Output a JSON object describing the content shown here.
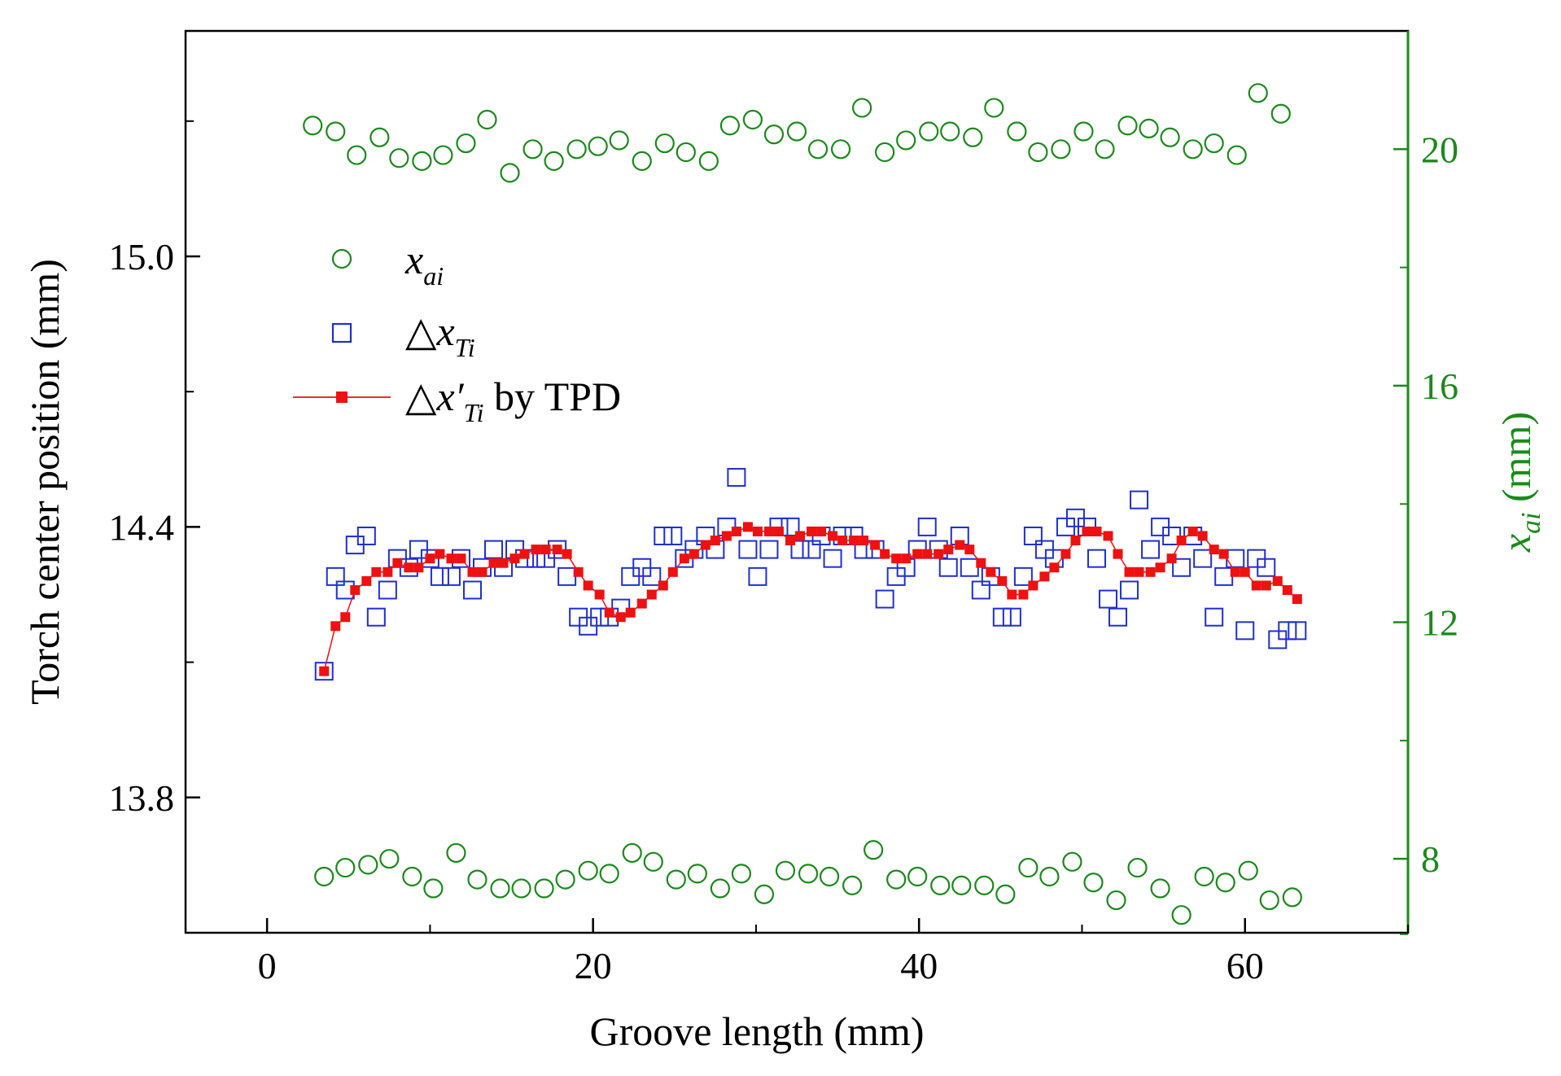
{
  "colors": {
    "xai": "#1a8a1a",
    "dxT": "#1f2fd0",
    "dxTp": "#ee1111",
    "axis": "#000000",
    "right_axis": "#1a8a1a"
  },
  "chart_data": {
    "type": "scatter",
    "xlabel": "Groove length (mm)",
    "ylabel": "Torch center position (mm)",
    "y2label_main": "x",
    "y2label_sub": "ai",
    "y2label_unit": " (mm)",
    "xlim": [
      -5,
      70
    ],
    "xticks": [
      0,
      20,
      40,
      60
    ],
    "ylim": [
      13.5,
      15.5
    ],
    "yticks": [
      13.8,
      14.4,
      15.0
    ],
    "yticks_labels": [
      "13.8",
      "14.4",
      "15.0"
    ],
    "y2lim": [
      6.75,
      22
    ],
    "y2ticks": [
      8,
      12,
      16,
      20
    ],
    "legend": {
      "placement": "top-left",
      "entries": [
        {
          "main": "x",
          "sub": "ai",
          "suffix": ""
        },
        {
          "main": "△x",
          "sub": "Ti",
          "suffix": ""
        },
        {
          "main": "△x′",
          "sub": "Ti",
          "suffix": "  by TPD"
        }
      ]
    },
    "series": [
      {
        "id": "xai_upper",
        "axis": "right",
        "marker": "open-circle",
        "x": [
          2.8,
          4.2,
          5.5,
          6.9,
          8.1,
          9.5,
          10.8,
          12.2,
          13.5,
          14.9,
          16.3,
          17.6,
          19.0,
          20.3,
          21.6,
          23.0,
          24.4,
          25.7,
          27.1,
          28.4,
          29.8,
          31.1,
          32.5,
          33.8,
          35.2,
          36.5,
          37.9,
          39.2,
          40.6,
          41.9,
          43.3,
          44.6,
          46.0,
          47.3,
          48.7,
          50.1,
          51.4,
          52.8,
          54.1,
          55.4,
          56.8,
          58.1,
          59.5,
          60.8,
          62.2
        ],
        "y": [
          20.4,
          20.3,
          19.9,
          20.2,
          19.85,
          19.8,
          19.9,
          20.1,
          20.5,
          19.6,
          20.0,
          19.8,
          20.0,
          20.05,
          20.15,
          19.8,
          20.1,
          19.95,
          19.8,
          20.4,
          20.5,
          20.25,
          20.3,
          20.0,
          20.0,
          20.7,
          19.95,
          20.15,
          20.3,
          20.3,
          20.2,
          20.7,
          20.3,
          19.95,
          20.0,
          20.3,
          20.0,
          20.4,
          20.35,
          20.2,
          20.0,
          20.1,
          19.9,
          20.95,
          20.6
        ]
      },
      {
        "id": "xai_lower",
        "axis": "right",
        "marker": "open-circle",
        "x": [
          3.5,
          4.8,
          6.2,
          7.5,
          8.9,
          10.2,
          11.6,
          12.9,
          14.3,
          15.6,
          17.0,
          18.3,
          19.7,
          21.0,
          22.4,
          23.7,
          25.1,
          26.4,
          27.8,
          29.1,
          30.5,
          31.8,
          33.2,
          34.5,
          35.9,
          37.2,
          38.6,
          39.9,
          41.3,
          42.6,
          44.0,
          45.3,
          46.7,
          48.0,
          49.4,
          50.7,
          52.1,
          53.4,
          54.8,
          56.1,
          57.5,
          58.8,
          60.2,
          61.5,
          62.9
        ],
        "y": [
          7.7,
          7.85,
          7.9,
          8.0,
          7.7,
          7.5,
          8.1,
          7.65,
          7.5,
          7.5,
          7.5,
          7.65,
          7.8,
          7.75,
          8.1,
          7.95,
          7.65,
          7.75,
          7.5,
          7.75,
          7.4,
          7.8,
          7.75,
          7.7,
          7.55,
          8.15,
          7.65,
          7.7,
          7.55,
          7.55,
          7.55,
          7.4,
          7.85,
          7.7,
          7.95,
          7.6,
          7.3,
          7.85,
          7.5,
          7.05,
          7.7,
          7.6,
          7.8,
          7.3,
          7.35
        ]
      },
      {
        "id": "dxT",
        "axis": "left",
        "marker": "open-square",
        "x": [
          3.5,
          4.2,
          4.8,
          5.4,
          6.1,
          6.7,
          7.4,
          8.0,
          8.7,
          9.3,
          10.0,
          10.6,
          11.3,
          11.9,
          12.6,
          13.2,
          13.9,
          14.5,
          15.2,
          15.8,
          16.5,
          17.1,
          17.8,
          18.4,
          19.1,
          19.7,
          20.4,
          21.0,
          21.7,
          22.3,
          23.0,
          23.6,
          24.3,
          24.9,
          25.6,
          26.2,
          26.9,
          27.5,
          28.2,
          28.8,
          29.5,
          30.1,
          30.8,
          31.4,
          32.1,
          32.7,
          33.4,
          34.0,
          34.7,
          35.3,
          36.0,
          36.6,
          37.3,
          37.9,
          38.6,
          39.2,
          39.9,
          40.5,
          41.2,
          41.8,
          42.5,
          43.1,
          43.8,
          44.4,
          45.1,
          45.7,
          46.4,
          47.0,
          47.7,
          48.3,
          49.0,
          49.6,
          50.3,
          50.9,
          51.6,
          52.2,
          52.9,
          53.5,
          54.2,
          54.8,
          55.5,
          56.1,
          56.8,
          57.4,
          58.1,
          58.7,
          59.4,
          60.0,
          60.7,
          61.3,
          62.0,
          62.6,
          63.2
        ],
        "y": [
          14.08,
          14.29,
          14.26,
          14.36,
          14.38,
          14.2,
          14.26,
          14.33,
          14.31,
          14.35,
          14.33,
          14.29,
          14.29,
          14.33,
          14.26,
          14.31,
          14.35,
          14.31,
          14.35,
          14.33,
          14.33,
          14.33,
          14.35,
          14.29,
          14.2,
          14.18,
          14.2,
          14.2,
          14.22,
          14.29,
          14.31,
          14.29,
          14.38,
          14.38,
          14.33,
          14.35,
          14.38,
          14.35,
          14.4,
          14.51,
          14.35,
          14.29,
          14.35,
          14.4,
          14.4,
          14.35,
          14.35,
          14.38,
          14.33,
          14.38,
          14.38,
          14.35,
          14.35,
          14.24,
          14.29,
          14.31,
          14.35,
          14.4,
          14.35,
          14.31,
          14.38,
          14.31,
          14.26,
          14.29,
          14.2,
          14.2,
          14.29,
          14.38,
          14.35,
          14.33,
          14.4,
          14.42,
          14.4,
          14.33,
          14.24,
          14.2,
          14.26,
          14.46,
          14.35,
          14.4,
          14.38,
          14.31,
          14.38,
          14.33,
          14.2,
          14.29,
          14.33,
          14.17,
          14.33,
          14.31,
          14.15,
          14.17,
          14.17
        ]
      },
      {
        "id": "dxTp",
        "axis": "left",
        "marker": "filled-square-line",
        "x": [
          3.5,
          4.2,
          4.8,
          5.4,
          6.1,
          6.7,
          7.4,
          8.0,
          8.7,
          9.3,
          10.0,
          10.6,
          11.3,
          11.9,
          12.6,
          13.2,
          13.9,
          14.5,
          15.2,
          15.8,
          16.5,
          17.1,
          17.8,
          18.4,
          19.1,
          19.7,
          20.4,
          21.0,
          21.7,
          22.3,
          23.0,
          23.6,
          24.3,
          24.9,
          25.6,
          26.2,
          26.9,
          27.5,
          28.2,
          28.8,
          29.5,
          30.1,
          30.8,
          31.4,
          32.1,
          32.7,
          33.4,
          34.0,
          34.7,
          35.3,
          36.0,
          36.6,
          37.3,
          37.9,
          38.6,
          39.2,
          39.9,
          40.5,
          41.2,
          41.8,
          42.5,
          43.1,
          43.8,
          44.4,
          45.1,
          45.7,
          46.4,
          47.0,
          47.7,
          48.3,
          49.0,
          49.6,
          50.3,
          50.9,
          51.6,
          52.2,
          52.9,
          53.5,
          54.2,
          54.8,
          55.5,
          56.1,
          56.8,
          57.4,
          58.1,
          58.7,
          59.4,
          60.0,
          60.7,
          61.3,
          62.0,
          62.6,
          63.2
        ],
        "y": [
          14.08,
          14.18,
          14.2,
          14.26,
          14.28,
          14.3,
          14.3,
          14.32,
          14.31,
          14.31,
          14.33,
          14.34,
          14.33,
          14.33,
          14.3,
          14.3,
          14.32,
          14.32,
          14.33,
          14.34,
          14.35,
          14.35,
          14.35,
          14.34,
          14.3,
          14.27,
          14.25,
          14.21,
          14.2,
          14.21,
          14.23,
          14.25,
          14.27,
          14.3,
          14.33,
          14.34,
          14.36,
          14.37,
          14.38,
          14.39,
          14.4,
          14.39,
          14.39,
          14.39,
          14.37,
          14.38,
          14.39,
          14.39,
          14.38,
          14.37,
          14.37,
          14.37,
          14.36,
          14.34,
          14.33,
          14.33,
          14.34,
          14.34,
          14.34,
          14.35,
          14.36,
          14.35,
          14.32,
          14.3,
          14.28,
          14.25,
          14.25,
          14.27,
          14.29,
          14.31,
          14.34,
          14.37,
          14.39,
          14.39,
          14.38,
          14.34,
          14.3,
          14.3,
          14.3,
          14.31,
          14.33,
          14.37,
          14.39,
          14.38,
          14.35,
          14.34,
          14.3,
          14.3,
          14.27,
          14.27,
          14.28,
          14.26,
          14.24
        ]
      }
    ]
  }
}
